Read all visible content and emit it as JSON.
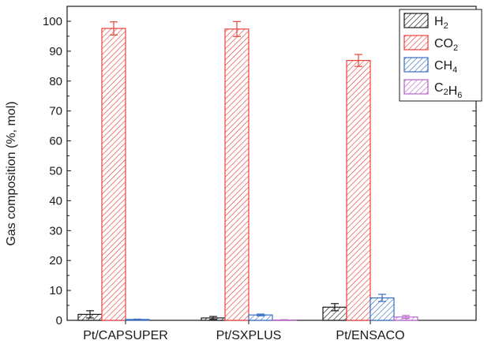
{
  "chart_data": {
    "type": "bar",
    "categories": [
      "Pt/CAPSUPER",
      "Pt/SXPLUS",
      "Pt/ENSACO"
    ],
    "series": [
      {
        "name": "H",
        "sub": "2",
        "color": "#1a1a1a",
        "values": [
          2.0,
          0.8,
          4.4
        ],
        "errors": [
          1.2,
          0.5,
          1.2
        ]
      },
      {
        "name": "CO",
        "sub": "2",
        "color": "#e8413c",
        "values": [
          97.6,
          97.4,
          86.9
        ],
        "errors": [
          2.2,
          2.5,
          2.0
        ]
      },
      {
        "name": "CH",
        "sub": "4",
        "color": "#3a6fc4",
        "values": [
          0.3,
          1.8,
          7.5
        ],
        "errors": [
          0.1,
          0.3,
          1.2
        ]
      },
      {
        "name": "C",
        "sub": "H",
        "sub2": "6",
        "subpre": "2",
        "color": "#b565c4",
        "values": [
          0.0,
          0.1,
          1.1
        ],
        "errors": [
          0.0,
          0.1,
          0.5
        ]
      }
    ],
    "ylabel": "Gas composition (%, mol)",
    "xlabel": "",
    "ylim": [
      0,
      105
    ],
    "yticks": [
      0,
      10,
      20,
      30,
      40,
      50,
      60,
      70,
      80,
      90,
      100
    ],
    "grid": false,
    "legend_position": "top-right"
  }
}
